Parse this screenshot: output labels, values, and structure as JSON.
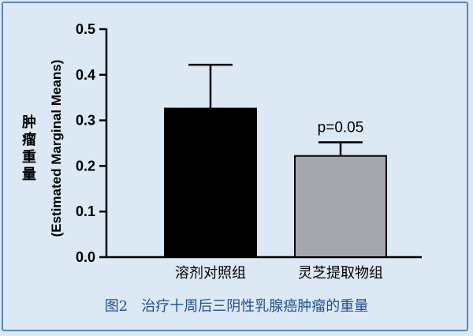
{
  "caption": "图2   治疗十周后三阴性乳腺癌肿瘤的重量",
  "chart_data": {
    "type": "bar",
    "categories": [
      "溶剂对照组",
      "灵芝提取物组"
    ],
    "values": [
      0.326,
      0.222
    ],
    "errors": [
      0.096,
      0.03
    ],
    "bar_colors": [
      "#000000",
      "#a6a6ae"
    ],
    "ylabel_en": "(Estimated Marginal Means)",
    "ylabel_cn": "肿瘤重量",
    "ylim": [
      0,
      0.5
    ],
    "yticks": [
      "0.0",
      "0.1",
      "0.2",
      "0.3",
      "0.4",
      "0.5"
    ],
    "annotation": "p=0.05",
    "grid": false
  }
}
